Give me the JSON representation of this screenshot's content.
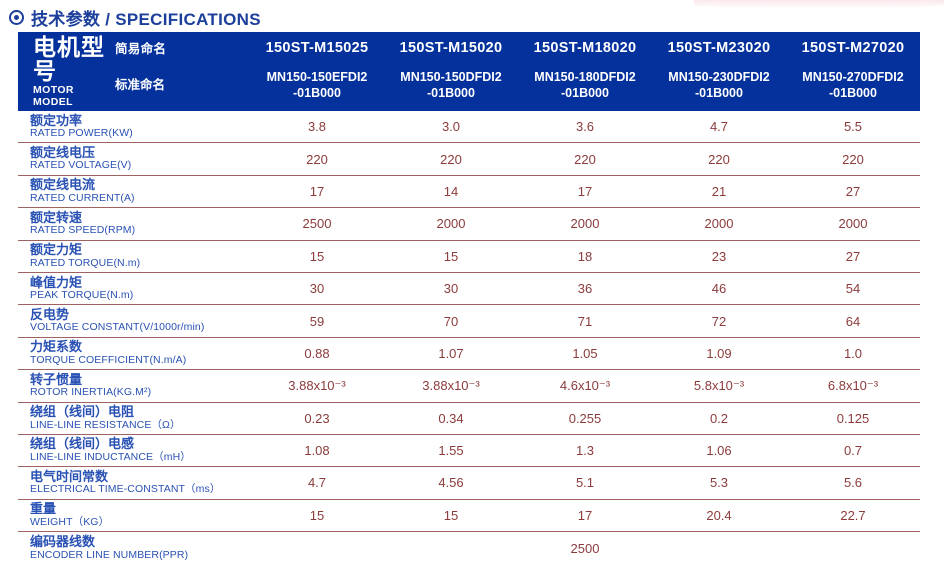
{
  "page_title": {
    "text": "技术参数 / SPECIFICATIONS"
  },
  "colors": {
    "title_blue": "#1d3f9c",
    "header_bg": "#04319c",
    "header_text": "#ffffff",
    "label_blue": "#2a52b4",
    "value_maroon": "#8c3b3b",
    "separator_line": "#9e6262"
  },
  "table": {
    "header": {
      "row_label_cn": "电机型号",
      "row_label_en": "MOTOR MODEL",
      "simple_name_label": "简易命名",
      "standard_name_label": "标准命名",
      "columns": [
        {
          "simple": "150ST-M15025",
          "standard": "MN150-150EFDI2\n-01B000"
        },
        {
          "simple": "150ST-M15020",
          "standard": "MN150-150DFDI2\n-01B000"
        },
        {
          "simple": "150ST-M18020",
          "standard": "MN150-180DFDI2\n-01B000"
        },
        {
          "simple": "150ST-M23020",
          "standard": "MN150-230DFDI2\n-01B000"
        },
        {
          "simple": "150ST-M27020",
          "standard": "MN150-270DFDI2\n-01B000"
        }
      ]
    },
    "rows": [
      {
        "cn": "额定功率",
        "en": "RATED POWER(KW)",
        "values": [
          "3.8",
          "3.0",
          "3.6",
          "4.7",
          "5.5"
        ]
      },
      {
        "cn": "额定线电压",
        "en": "RATED VOLTAGE(V)",
        "values": [
          "220",
          "220",
          "220",
          "220",
          "220"
        ]
      },
      {
        "cn": "额定线电流",
        "en": "RATED CURRENT(A)",
        "values": [
          "17",
          "14",
          "17",
          "21",
          "27"
        ]
      },
      {
        "cn": "额定转速",
        "en": "RATED SPEED(RPM)",
        "values": [
          "2500",
          "2000",
          "2000",
          "2000",
          "2000"
        ]
      },
      {
        "cn": "额定力矩",
        "en": "RATED TORQUE(N.m)",
        "values": [
          "15",
          "15",
          "18",
          "23",
          "27"
        ]
      },
      {
        "cn": "峰值力矩",
        "en": "PEAK TORQUE(N.m)",
        "values": [
          "30",
          "30",
          "36",
          "46",
          "54"
        ]
      },
      {
        "cn": "反电势",
        "en": "VOLTAGE CONSTANT(V/1000r/min)",
        "values": [
          "59",
          "70",
          "71",
          "72",
          "64"
        ]
      },
      {
        "cn": "力矩系数",
        "en": "TORQUE COEFFICIENT(N.m/A)",
        "values": [
          "0.88",
          "1.07",
          "1.05",
          "1.09",
          "1.0"
        ]
      },
      {
        "cn": "转子惯量",
        "en": "ROTOR INERTIA(KG.M²)",
        "values": [
          "3.88x10⁻³",
          "3.88x10⁻³",
          "4.6x10⁻³",
          "5.8x10⁻³",
          "6.8x10⁻³"
        ]
      },
      {
        "cn": "绕组（线间）电阻",
        "en": "LINE-LINE RESISTANCE（Ω）",
        "values": [
          "0.23",
          "0.34",
          "0.255",
          "0.2",
          "0.125"
        ]
      },
      {
        "cn": "绕组（线间）电感",
        "en": "LINE-LINE INDUCTANCE（mH）",
        "values": [
          "1.08",
          "1.55",
          "1.3",
          "1.06",
          "0.7"
        ]
      },
      {
        "cn": "电气时间常数",
        "en": "ELECTRICAL TIME-CONSTANT（ms）",
        "values": [
          "4.7",
          "4.56",
          "5.1",
          "5.3",
          "5.6"
        ]
      },
      {
        "cn": "重量",
        "en": "WEIGHT（KG）",
        "values": [
          "15",
          "15",
          "17",
          "20.4",
          "22.7"
        ]
      },
      {
        "cn": "编码器线数",
        "en": "ENCODER LINE NUMBER(PPR)",
        "span_value": "2500"
      }
    ]
  }
}
